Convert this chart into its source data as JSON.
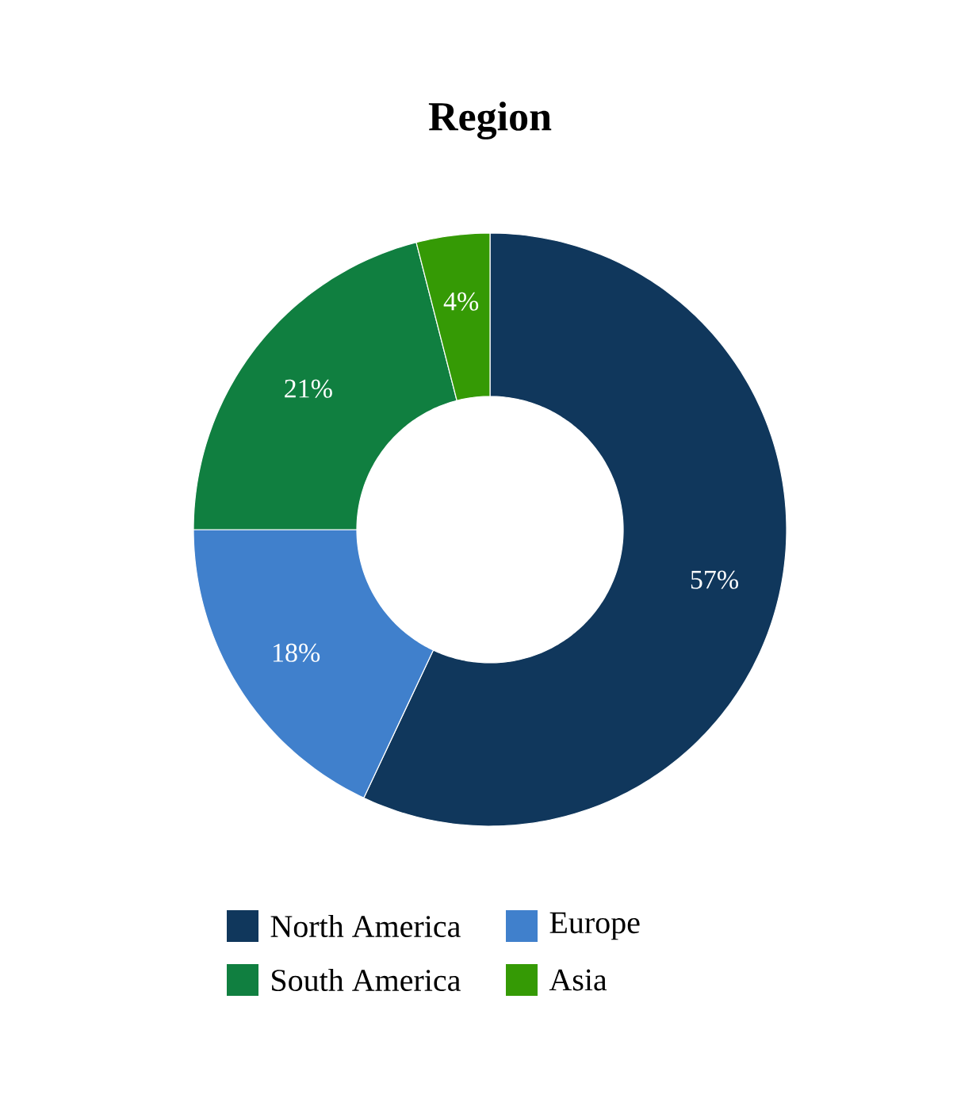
{
  "chart_data": {
    "type": "donut",
    "title": "Region",
    "categories": [
      "North America",
      "Europe",
      "South America",
      "Asia"
    ],
    "values": [
      57,
      18,
      21,
      4
    ],
    "colors": [
      "#10375c",
      "#4080cc",
      "#107f40",
      "#359a05"
    ],
    "data_labels": true,
    "value_labels": [
      "57%",
      "18%",
      "21%",
      "4%"
    ],
    "legend": "bottom"
  }
}
